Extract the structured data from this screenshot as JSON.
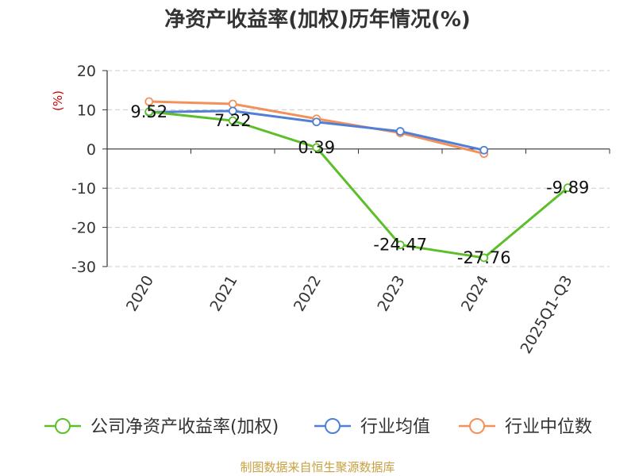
{
  "chart_data": {
    "type": "line",
    "title": "净资产收益率(加权)历年情况(%)",
    "ylabel": "(%)",
    "xlabel": "",
    "categories": [
      "2020",
      "2021",
      "2022",
      "2023",
      "2024",
      "2025Q1-Q3"
    ],
    "ylim": [
      -30,
      20
    ],
    "yticks": [
      20,
      10,
      0,
      -10,
      -20,
      -30
    ],
    "grid": true,
    "legend_position": "bottom",
    "series": [
      {
        "name": "公司净资产收益率(加权)",
        "color": "#5cbf2a",
        "values": [
          9.52,
          7.22,
          0.39,
          -24.47,
          -27.76,
          -9.89
        ],
        "labels": [
          "9.52",
          "7.22",
          "0.39",
          "-24.47",
          "-27.76",
          "-9.89"
        ]
      },
      {
        "name": "行业均值",
        "color": "#4f7fd6",
        "values": [
          9.4,
          9.7,
          6.9,
          4.5,
          -0.3,
          null
        ]
      },
      {
        "name": "行业中位数",
        "color": "#f4905a",
        "values": [
          12.1,
          11.5,
          7.7,
          4.1,
          -1.2,
          null
        ]
      }
    ]
  },
  "footer": {
    "source": "制图数据来自恒生聚源数据库"
  }
}
